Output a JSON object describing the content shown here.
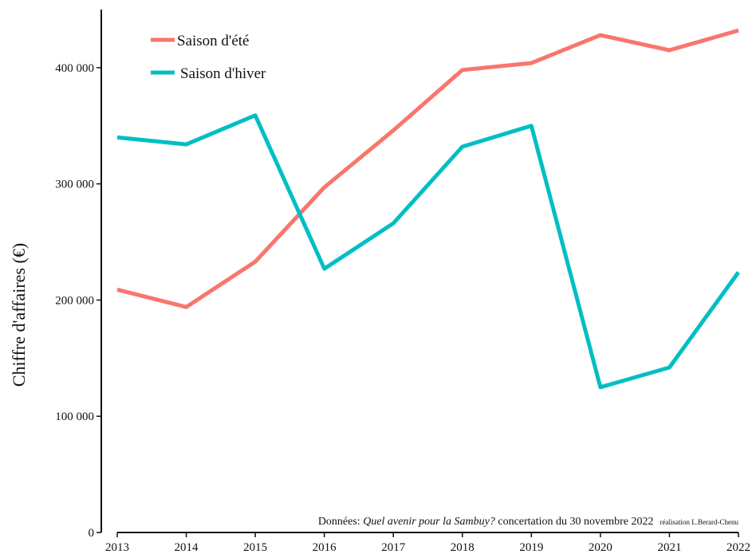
{
  "chart_data": {
    "type": "line",
    "x": [
      2013,
      2014,
      2015,
      2016,
      2017,
      2018,
      2019,
      2020,
      2021,
      2022
    ],
    "x_tick_labels": [
      "2013",
      "2014",
      "2015",
      "2016",
      "2017",
      "2018",
      "2019",
      "2020",
      "2021",
      "2022"
    ],
    "series": [
      {
        "name": "Saison d'été",
        "color": "#f8766d",
        "values": [
          209000,
          194000,
          233000,
          297000,
          346000,
          398000,
          404000,
          428000,
          415000,
          432000
        ]
      },
      {
        "name": "Saison d'hiver",
        "color": "#00bfc4",
        "values": [
          340000,
          334000,
          359000,
          227000,
          266000,
          332000,
          350000,
          125000,
          142000,
          224000
        ]
      }
    ],
    "ylabel": "Chiffre d'affaires (€)",
    "xlabel": "",
    "ylim": [
      0,
      450000
    ],
    "y_ticks": [
      0,
      100000,
      200000,
      300000,
      400000
    ],
    "y_tick_labels": [
      "0",
      "100 000",
      "200 000",
      "300 000",
      "400 000"
    ],
    "grid": false,
    "legend_position": "top-left",
    "note": {
      "prefix": "Données: ",
      "source_title": "Quel avenir pour la Sambuy?",
      "suffix": " concertation du 30 novembre 2022",
      "credit": "réalisation L.Berard-Chenu"
    }
  }
}
